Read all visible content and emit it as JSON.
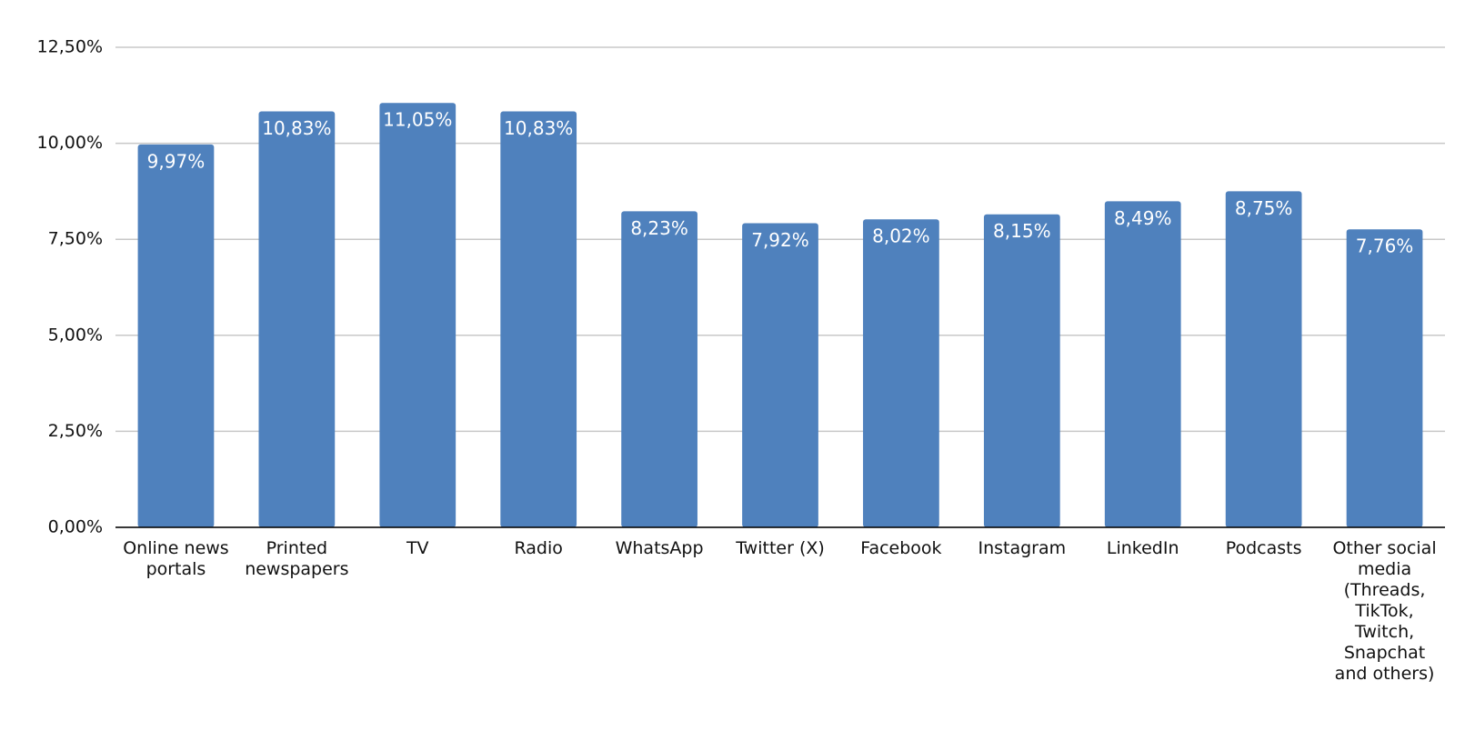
{
  "chart_data": {
    "type": "bar",
    "categories": [
      "Online news portals",
      "Printed newspapers",
      "TV",
      "Radio",
      "WhatsApp",
      "Twitter (X)",
      "Facebook",
      "Instagram",
      "LinkedIn",
      "Podcasts",
      "Other social media (Threads, TikTok, Twitch, Snapchat and others)"
    ],
    "values": [
      9.97,
      10.83,
      11.05,
      10.83,
      8.23,
      7.92,
      8.02,
      8.15,
      8.49,
      8.75,
      7.76
    ],
    "value_labels": [
      "9,97%",
      "10,83%",
      "11,05%",
      "10,83%",
      "8,23%",
      "7,92%",
      "8,02%",
      "8,15%",
      "8,49%",
      "8,75%",
      "7,76%"
    ],
    "color": "#4f81bd",
    "ylim": [
      0,
      12.5
    ],
    "yticks": [
      {
        "value": 0,
        "label": "0,00%"
      },
      {
        "value": 2.5,
        "label": "2,50%"
      },
      {
        "value": 5,
        "label": "5,00%"
      },
      {
        "value": 7.5,
        "label": "7,50%"
      },
      {
        "value": 10,
        "label": "10,00%"
      },
      {
        "value": 12.5,
        "label": "12,50%"
      }
    ],
    "grid": true
  }
}
